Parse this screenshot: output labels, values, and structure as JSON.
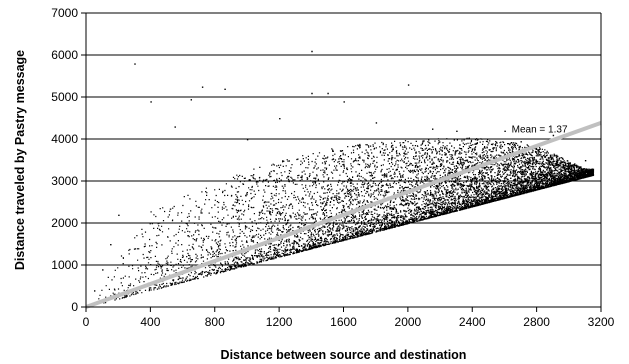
{
  "chart_data": {
    "type": "scatter",
    "title": "",
    "xlabel": "Distance between source and destination",
    "ylabel": "Distance traveled by Pastry message",
    "xlim": [
      0,
      3200
    ],
    "ylim": [
      0,
      7000
    ],
    "x_ticks": [
      0,
      400,
      800,
      1200,
      1600,
      2000,
      2400,
      2800,
      3200
    ],
    "y_ticks": [
      0,
      1000,
      2000,
      3000,
      4000,
      5000,
      6000,
      7000
    ],
    "grid": "horizontal",
    "legend": "none",
    "colors": {
      "points": "#000000",
      "mean_line": "#c0c0c0",
      "grid": "#000000"
    },
    "series": [
      {
        "kind": "points",
        "marker": "dot",
        "description_points": [
          [
            300,
            5800
          ],
          [
            1400,
            6100
          ],
          [
            2000,
            5300
          ],
          [
            400,
            4900
          ],
          [
            650,
            4950
          ],
          [
            720,
            5250
          ],
          [
            860,
            5200
          ],
          [
            550,
            4300
          ],
          [
            1400,
            5100
          ],
          [
            1500,
            5100
          ],
          [
            1600,
            4900
          ],
          [
            2150,
            4250
          ],
          [
            2300,
            4200
          ],
          [
            2600,
            4200
          ],
          [
            2900,
            4100
          ],
          [
            2700,
            3950
          ],
          [
            3100,
            3500
          ],
          [
            3050,
            3200
          ],
          [
            200,
            2200
          ],
          [
            150,
            1500
          ],
          [
            100,
            900
          ],
          [
            50,
            400
          ],
          [
            1000,
            4000
          ],
          [
            1200,
            4500
          ],
          [
            1800,
            4400
          ]
        ],
        "envelope": {
          "lower_ratio": 1.0,
          "upper_curve": [
            [
              0,
              0
            ],
            [
              400,
              2300
            ],
            [
              800,
              3000
            ],
            [
              1200,
              3500
            ],
            [
              1600,
              3850
            ],
            [
              2000,
              4000
            ],
            [
              2400,
              4050
            ],
            [
              2800,
              3850
            ],
            [
              3100,
              3300
            ]
          ],
          "x_max": 3150
        }
      },
      {
        "kind": "line",
        "slope": 1.37,
        "x_range": [
          0,
          3200
        ]
      }
    ],
    "annotations": [
      {
        "text": "Mean = 1.37",
        "x": 2800,
        "y": 4150
      }
    ]
  }
}
